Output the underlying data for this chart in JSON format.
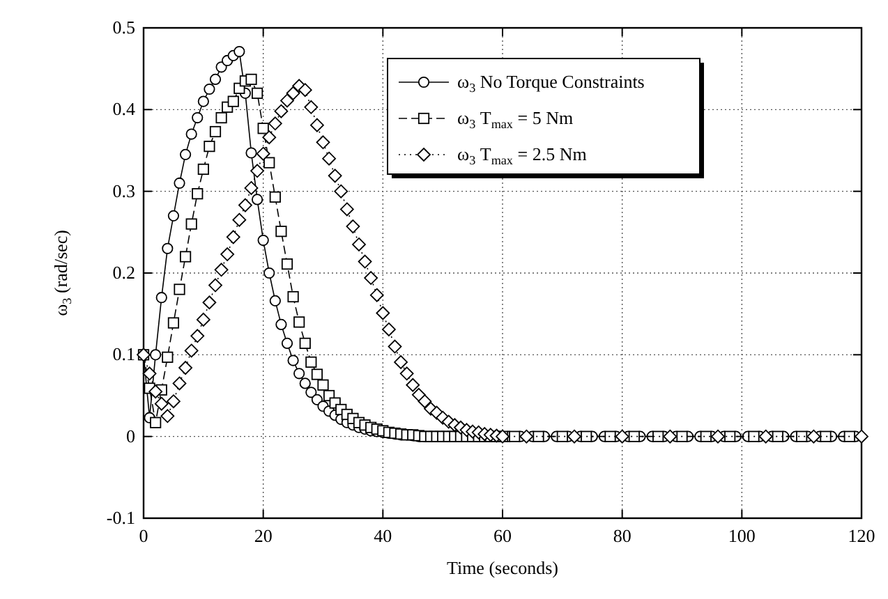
{
  "chart_data": {
    "type": "line",
    "xlabel": "Time (seconds)",
    "ylabel": "ω$_{3}$ (rad/sec)",
    "series": [
      {
        "name": "ω$_{3}$ No Torque Constraints",
        "color": "#000000",
        "marker": "circle",
        "line_style": "solid",
        "x": [
          0,
          1,
          2,
          3,
          4,
          5,
          6,
          7,
          8,
          9,
          10,
          11,
          12,
          13,
          14,
          15,
          16,
          17,
          18,
          19,
          20,
          21,
          22,
          23,
          24,
          25,
          26,
          27,
          28,
          29,
          30,
          31,
          32,
          33,
          34,
          35,
          36,
          37,
          38,
          39,
          40,
          41,
          42,
          43,
          44,
          45,
          46,
          47,
          48,
          49,
          50,
          51,
          52,
          53,
          54,
          55,
          56,
          57,
          58,
          59,
          60,
          61,
          63,
          65,
          67,
          69,
          71,
          73,
          75,
          77,
          79,
          81,
          83,
          85,
          87,
          89,
          91,
          93,
          95,
          97,
          99,
          101,
          103,
          105,
          107,
          109,
          111,
          113,
          115,
          117,
          119
        ],
        "values": [
          0.1,
          0.023,
          0.1,
          0.17,
          0.23,
          0.27,
          0.31,
          0.345,
          0.37,
          0.39,
          0.41,
          0.425,
          0.437,
          0.452,
          0.46,
          0.466,
          0.471,
          0.42,
          0.347,
          0.29,
          0.24,
          0.2,
          0.166,
          0.137,
          0.114,
          0.093,
          0.077,
          0.065,
          0.054,
          0.045,
          0.037,
          0.031,
          0.026,
          0.021,
          0.017,
          0.014,
          0.011,
          0.009,
          0.007,
          0.006,
          0.005,
          0.004,
          0.003,
          0.002,
          0.002,
          0.001,
          0,
          0,
          0,
          0,
          0,
          0,
          0,
          0,
          0,
          0,
          0,
          0,
          0,
          0,
          0,
          0,
          0,
          0,
          0,
          0,
          0,
          0,
          0,
          0,
          0,
          0,
          0,
          0,
          0,
          0,
          0,
          0,
          0,
          0,
          0,
          0,
          0,
          0,
          0,
          0,
          0,
          0,
          0,
          0,
          0
        ]
      },
      {
        "name": "ω$_{3}$ T$_{max}$ = 5 Nm",
        "color": "#000000",
        "marker": "square",
        "line_style": "dashed",
        "x": [
          0,
          1,
          2,
          3,
          4,
          5,
          6,
          7,
          8,
          9,
          10,
          11,
          12,
          13,
          14,
          15,
          16,
          17,
          18,
          19,
          20,
          21,
          22,
          23,
          24,
          25,
          26,
          27,
          28,
          29,
          30,
          31,
          32,
          33,
          34,
          35,
          36,
          37,
          38,
          39,
          40,
          41,
          42,
          43,
          44,
          45,
          46,
          47,
          48,
          49,
          50,
          51,
          52,
          53,
          54,
          55,
          56,
          57,
          58,
          59,
          60,
          62,
          66,
          70,
          74,
          78,
          82,
          86,
          90,
          94,
          98,
          102,
          106,
          110,
          114,
          118
        ],
        "values": [
          0.1,
          0.059,
          0.017,
          0.057,
          0.097,
          0.139,
          0.18,
          0.22,
          0.26,
          0.297,
          0.327,
          0.355,
          0.373,
          0.39,
          0.403,
          0.41,
          0.426,
          0.435,
          0.437,
          0.42,
          0.377,
          0.335,
          0.293,
          0.251,
          0.211,
          0.171,
          0.14,
          0.114,
          0.091,
          0.076,
          0.063,
          0.05,
          0.041,
          0.033,
          0.027,
          0.022,
          0.017,
          0.014,
          0.011,
          0.009,
          0.007,
          0.005,
          0.004,
          0.003,
          0.002,
          0.002,
          0.001,
          0,
          0,
          0,
          0,
          0,
          0,
          0,
          0,
          0,
          0,
          0,
          0,
          0,
          0,
          0,
          0,
          0,
          0,
          0,
          0,
          0,
          0,
          0,
          0,
          0,
          0,
          0,
          0,
          0
        ]
      },
      {
        "name": "ω$_{3}$ T$_{max}$ = 2.5 Nm",
        "color": "#000000",
        "marker": "diamond",
        "line_style": "dotted",
        "x": [
          0,
          1,
          2,
          3,
          4,
          5,
          6,
          7,
          8,
          9,
          10,
          11,
          12,
          13,
          14,
          15,
          16,
          17,
          18,
          19,
          20,
          21,
          22,
          23,
          24,
          25,
          26,
          27,
          28,
          29,
          30,
          31,
          32,
          33,
          34,
          35,
          36,
          37,
          38,
          39,
          40,
          41,
          42,
          43,
          44,
          45,
          46,
          47,
          48,
          49,
          50,
          51,
          52,
          53,
          54,
          55,
          56,
          57,
          58,
          59,
          60,
          64,
          72,
          80,
          88,
          96,
          104,
          112,
          120
        ],
        "values": [
          0.1,
          0.077,
          0.055,
          0.04,
          0.025,
          0.043,
          0.065,
          0.084,
          0.105,
          0.123,
          0.143,
          0.164,
          0.185,
          0.204,
          0.223,
          0.244,
          0.265,
          0.283,
          0.304,
          0.325,
          0.346,
          0.366,
          0.383,
          0.398,
          0.411,
          0.42,
          0.429,
          0.424,
          0.403,
          0.381,
          0.36,
          0.34,
          0.319,
          0.3,
          0.278,
          0.257,
          0.235,
          0.214,
          0.194,
          0.173,
          0.151,
          0.131,
          0.11,
          0.091,
          0.077,
          0.063,
          0.051,
          0.043,
          0.034,
          0.029,
          0.023,
          0.018,
          0.014,
          0.011,
          0.008,
          0.006,
          0.005,
          0.003,
          0.002,
          0.001,
          0,
          0,
          0,
          0,
          0,
          0,
          0,
          0,
          0
        ]
      }
    ],
    "xlim": [
      0,
      120
    ],
    "xticks": [
      0,
      20,
      40,
      60,
      80,
      100,
      120
    ],
    "ylim": [
      -0.1,
      0.5
    ],
    "yticks": [
      -0.1,
      0,
      0.1,
      0.2,
      0.3,
      0.4,
      0.5
    ],
    "grid": true,
    "legend": "top right"
  }
}
